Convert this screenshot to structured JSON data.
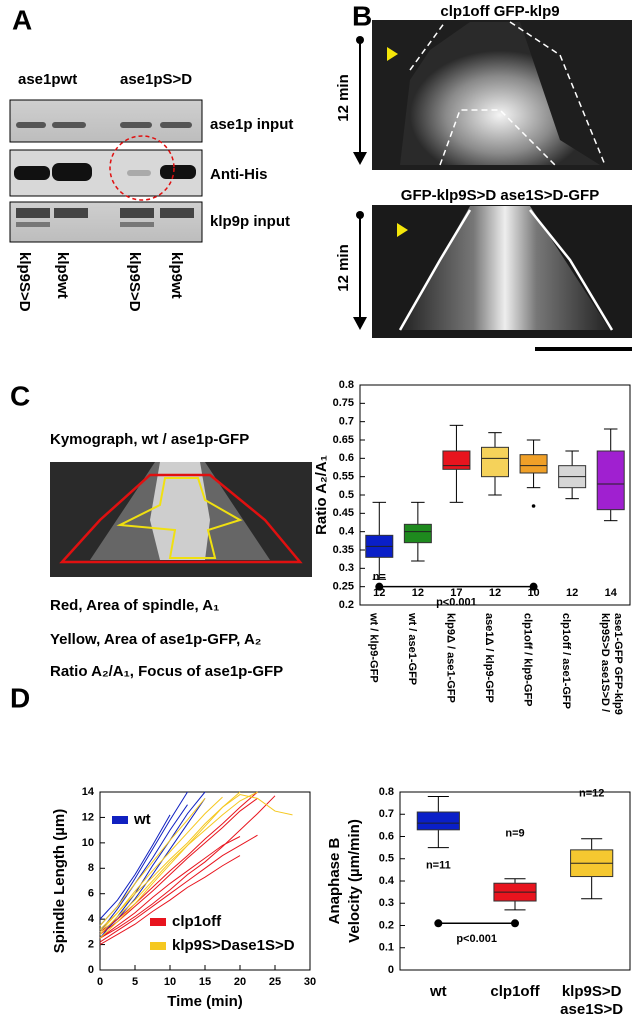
{
  "panels": {
    "A": {
      "letter": "A",
      "conditions": [
        "ase1pwt",
        "ase1pS>D"
      ],
      "rows": [
        "ase1p input",
        "Anti-His",
        "klp9p input"
      ],
      "lanes": [
        "klp9S>D",
        "klp9wt",
        "klp9S>D",
        "klp9wt"
      ]
    },
    "B": {
      "letter": "B",
      "top_title": "clp1off GFP-klp9",
      "bottom_title": "GFP-klp9S>D ase1S>D-GFP",
      "time_label": "12 min"
    },
    "C": {
      "letter": "C",
      "kymo_title": "Kymograph, wt / ase1p-GFP",
      "legend_lines": [
        "Red, Area of spindle, A₁",
        "Yellow, Area of ase1p-GFP, A₂",
        "Ratio A₂/A₁, Focus of ase1p-GFP"
      ]
    },
    "D": {
      "letter": "D"
    }
  },
  "chart_data": [
    {
      "type": "box",
      "ylabel": "Ratio A₂/A₁",
      "ylim": [
        0.2,
        0.8
      ],
      "yticks": [
        0.2,
        0.25,
        0.3,
        0.35,
        0.4,
        0.45,
        0.5,
        0.55,
        0.6,
        0.65,
        0.7,
        0.75,
        0.8
      ],
      "categories": [
        [
          "wt / klp9-GFP"
        ],
        [
          "wt / ase1-GFP"
        ],
        [
          "klp9Δ / ase1-GFP"
        ],
        [
          "ase1Δ / klp9-GFP"
        ],
        [
          "clp1off / klp9-GFP"
        ],
        [
          "clp1off / ase1-GFP"
        ],
        [
          "klp9S>D ase1S>D /",
          "ase1-GFP GFP-klp9"
        ]
      ],
      "boxes": [
        {
          "whislo": 0.27,
          "q1": 0.33,
          "med": 0.36,
          "q3": 0.39,
          "whishi": 0.48,
          "color": "#0a1fc8"
        },
        {
          "whislo": 0.32,
          "q1": 0.37,
          "med": 0.4,
          "q3": 0.42,
          "whishi": 0.48,
          "color": "#1e8a1e"
        },
        {
          "whislo": 0.48,
          "q1": 0.57,
          "med": 0.58,
          "q3": 0.62,
          "whishi": 0.69,
          "color": "#e8141e"
        },
        {
          "whislo": 0.5,
          "q1": 0.55,
          "med": 0.6,
          "q3": 0.63,
          "whishi": 0.67,
          "color": "#f5d25a"
        },
        {
          "whislo": 0.52,
          "q1": 0.56,
          "med": 0.58,
          "q3": 0.61,
          "whishi": 0.65,
          "color": "#f0a028",
          "fliers": [
            0.47
          ]
        },
        {
          "whislo": 0.49,
          "q1": 0.52,
          "med": 0.55,
          "q3": 0.58,
          "whishi": 0.62,
          "color": "#d6d6d6"
        },
        {
          "whislo": 0.43,
          "q1": 0.46,
          "med": 0.53,
          "q3": 0.62,
          "whishi": 0.68,
          "color": "#a020d0"
        }
      ],
      "n_label": "n=",
      "n": [
        12,
        12,
        17,
        12,
        10,
        12,
        14
      ],
      "significance": {
        "label": "p<0.001",
        "from": 0,
        "to": 4,
        "y": 0.25
      }
    },
    {
      "type": "line",
      "xlabel": "Time (min)",
      "ylabel": "Spindle Length (µm)",
      "xlim": [
        0,
        30
      ],
      "xticks": [
        0,
        5,
        10,
        15,
        20,
        25,
        30
      ],
      "ylim": [
        0,
        14
      ],
      "yticks": [
        0,
        2,
        4,
        6,
        8,
        10,
        12,
        14
      ],
      "x": [
        0,
        2.5,
        5,
        7.5,
        10,
        12.5,
        15,
        17.5,
        20,
        22.5,
        25,
        27.5
      ],
      "series": [
        {
          "name": "wt",
          "color": "#1020c0",
          "lines": [
            [
              3,
              4.8,
              6.8,
              8.8,
              11,
              13,
              null,
              null,
              null,
              null,
              null,
              null
            ],
            [
              2.5,
              4.2,
              6,
              8.2,
              10.2,
              12.3,
              14,
              null,
              null,
              null,
              null,
              null
            ],
            [
              3.5,
              5,
              7.2,
              9.5,
              11.8,
              14,
              null,
              null,
              null,
              null,
              null,
              null
            ],
            [
              2.8,
              4,
              5.6,
              7.5,
              9.5,
              11.5,
              13.5,
              null,
              null,
              null,
              null,
              null
            ],
            [
              4,
              5.5,
              7.5,
              9.8,
              12.2,
              null,
              null,
              null,
              null,
              null,
              null,
              null
            ]
          ]
        },
        {
          "name": "clp1off",
          "color": "#e8141e",
          "lines": [
            [
              2.5,
              3.5,
              4.5,
              5.7,
              6.8,
              7.8,
              8.8,
              9.8,
              10.5,
              null,
              null,
              null
            ],
            [
              2.2,
              3.1,
              4,
              5,
              6,
              7,
              8,
              9,
              9.8,
              10.6,
              null,
              null
            ],
            [
              2.8,
              3.8,
              5,
              6.2,
              7.5,
              8.8,
              10,
              11.2,
              12.5,
              13.5,
              null,
              null
            ],
            [
              2.5,
              3.3,
              4.2,
              5.2,
              6.3,
              7.5,
              8.5,
              9.7,
              11,
              12.3,
              13.7,
              null
            ],
            [
              2,
              2.8,
              3.6,
              4.6,
              5.5,
              6.5,
              7.3,
              8.2,
              9,
              null,
              null,
              null
            ],
            [
              3,
              4,
              5.2,
              6.5,
              7.8,
              9,
              10.3,
              11.5,
              12.8,
              14,
              null,
              null
            ]
          ]
        },
        {
          "name": "klp9S>Dase1S>D",
          "color": "#f5c820",
          "lines": [
            [
              3,
              4.5,
              6.2,
              7.8,
              9.3,
              10.8,
              12.3,
              13.6,
              null,
              null,
              null,
              null
            ],
            [
              2.5,
              3.8,
              5.2,
              6.8,
              8.3,
              9.8,
              11.3,
              12.8,
              14,
              null,
              null,
              null
            ],
            [
              3.5,
              5,
              6.8,
              8.5,
              10.2,
              11.8,
              13.5,
              null,
              null,
              null,
              null,
              null
            ],
            [
              2.8,
              4.2,
              5.5,
              7,
              8.5,
              9.8,
              11,
              12.2,
              13.3,
              14,
              null,
              null
            ],
            [
              3.2,
              4.5,
              6,
              7.3,
              8.7,
              10,
              11.5,
              12.8,
              13.8,
              13.5,
              12.5,
              12.2
            ]
          ]
        }
      ]
    },
    {
      "type": "box",
      "ylabel": [
        "Anaphase B",
        "Velocity (µm/min)"
      ],
      "ylim": [
        0,
        0.8
      ],
      "yticks": [
        0,
        0.1,
        0.2,
        0.3,
        0.4,
        0.5,
        0.6,
        0.7,
        0.8
      ],
      "categories": [
        [
          "wt"
        ],
        [
          "clp1off"
        ],
        [
          "klp9S>D",
          "ase1S>D"
        ]
      ],
      "boxes": [
        {
          "whislo": 0.55,
          "q1": 0.63,
          "med": 0.66,
          "q3": 0.71,
          "whishi": 0.78,
          "color": "#0a1fc8"
        },
        {
          "whislo": 0.27,
          "q1": 0.31,
          "med": 0.35,
          "q3": 0.39,
          "whishi": 0.41,
          "color": "#e8141e"
        },
        {
          "whislo": 0.32,
          "q1": 0.42,
          "med": 0.48,
          "q3": 0.54,
          "whishi": 0.59,
          "color": "#f5c830"
        }
      ],
      "n_labels": [
        "n=11",
        "n=9",
        "n=12"
      ],
      "significance": {
        "label": "p<0.001",
        "from": 0,
        "to": 1,
        "y": 0.21
      }
    }
  ]
}
